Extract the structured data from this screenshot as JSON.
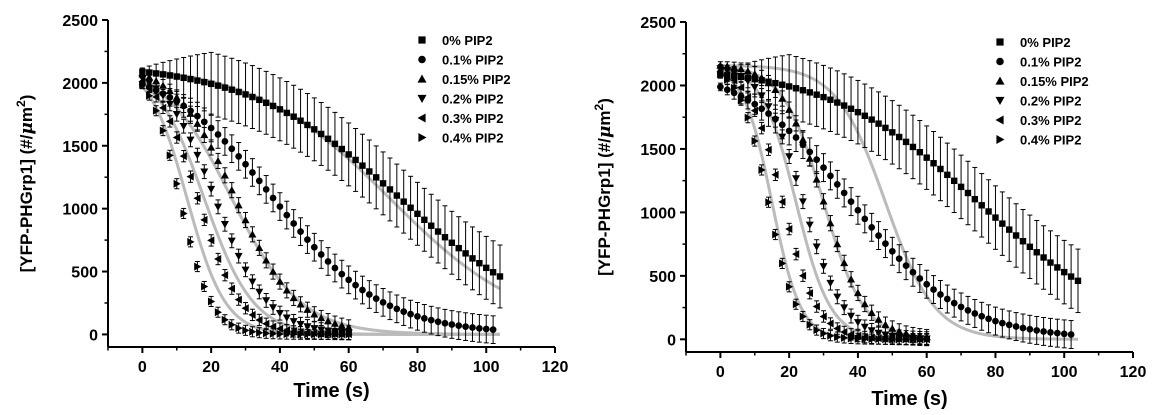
{
  "colors": {
    "marker": "#000000",
    "fit": "#bbbbbb",
    "axis": "#000000"
  },
  "chart_data": [
    {
      "type": "scatter",
      "xlabel": "Time (s)",
      "ylabel_main": "[YFP-PHGrp1] (#/",
      "ylabel_mu": "μ",
      "ylabel_m": "m",
      "ylabel_exp": "2",
      "ylabel_close": ")",
      "xlim": [
        -10,
        120
      ],
      "ylim": [
        -100,
        2500
      ],
      "xticks": [
        0,
        20,
        40,
        60,
        80,
        100,
        120
      ],
      "yticks": [
        0,
        500,
        1000,
        1500,
        2000,
        2500
      ],
      "legend_position": "top-right",
      "legend": [
        "0% PIP2",
        "0.1% PIP2",
        "0.15% PIP2",
        "0.2% PIP2",
        "0.3% PIP2",
        "0.4% PIP2"
      ],
      "series": [
        {
          "name": "0% PIP2",
          "marker": "square",
          "y0": 2160,
          "t_half": 75,
          "k": 0.045,
          "t_end": 104,
          "err_growth": 11,
          "err_max": 250
        },
        {
          "name": "0.1% PIP2",
          "marker": "circle",
          "y0": 2170,
          "t_half": 38,
          "k": 0.063,
          "t_end": 102,
          "err_growth": 5,
          "err_max": 110
        },
        {
          "name": "0.15% PIP2",
          "marker": "triangle-up",
          "y0": 2175,
          "t_half": 27,
          "k": 0.11,
          "t_end": 60,
          "err_growth": 3,
          "err_max": 60
        },
        {
          "name": "0.2% PIP2",
          "marker": "triangle-down",
          "y0": 2170,
          "t_half": 21,
          "k": 0.13,
          "t_end": 60,
          "err_growth": 3,
          "err_max": 55
        },
        {
          "name": "0.3% PIP2",
          "marker": "triangle-left",
          "y0": 2165,
          "t_half": 16,
          "k": 0.16,
          "t_end": 60,
          "err_growth": 2.5,
          "err_max": 45
        },
        {
          "name": "0.4% PIP2",
          "marker": "triangle-right",
          "y0": 2160,
          "t_half": 11,
          "k": 0.22,
          "t_end": 60,
          "err_growth": 2.5,
          "err_max": 40
        }
      ],
      "fits": [
        {
          "y0": 2160,
          "t_half": 72,
          "k": 0.05,
          "t_end": 104
        },
        {
          "y0": 2160,
          "t_half": 26,
          "k": 0.1,
          "t_end": 104
        },
        {
          "y0": 2160,
          "t_half": 18,
          "k": 0.14,
          "t_end": 104
        },
        {
          "y0": 2160,
          "t_half": 13,
          "k": 0.18,
          "t_end": 104
        }
      ]
    },
    {
      "type": "scatter",
      "xlabel": "Time (s)",
      "ylabel_main": "[YFP-PHGrp1] (#/",
      "ylabel_mu": "μ",
      "ylabel_m": "m",
      "ylabel_exp": "2",
      "ylabel_close": ")",
      "xlim": [
        -10,
        120
      ],
      "ylim": [
        -100,
        2500
      ],
      "xticks": [
        0,
        20,
        40,
        60,
        80,
        100,
        120
      ],
      "yticks": [
        0,
        500,
        1000,
        1500,
        2000,
        2500
      ],
      "legend_position": "top-right",
      "legend": [
        "0% PIP2",
        "0.1% PIP2",
        "0.15% PIP2",
        "0.2% PIP2",
        "0.3% PIP2",
        "0.4% PIP2"
      ],
      "series": [
        {
          "name": "0% PIP2",
          "marker": "square",
          "y0": 2160,
          "t_half": 75,
          "k": 0.045,
          "t_end": 104,
          "err_growth": 11,
          "err_max": 250
        },
        {
          "name": "0.1% PIP2",
          "marker": "circle",
          "y0": 2170,
          "t_half": 38,
          "k": 0.063,
          "t_end": 102,
          "err_growth": 5,
          "err_max": 110
        },
        {
          "name": "0.15% PIP2",
          "marker": "triangle-up",
          "y0": 2175,
          "t_half": 30,
          "k": 0.16,
          "t_end": 60,
          "err_growth": 3,
          "err_max": 60
        },
        {
          "name": "0.2% PIP2",
          "marker": "triangle-down",
          "y0": 2170,
          "t_half": 24,
          "k": 0.17,
          "t_end": 60,
          "err_growth": 3,
          "err_max": 55
        },
        {
          "name": "0.3% PIP2",
          "marker": "triangle-left",
          "y0": 2165,
          "t_half": 18,
          "k": 0.2,
          "t_end": 60,
          "err_growth": 2.5,
          "err_max": 45
        },
        {
          "name": "0.4% PIP2",
          "marker": "triangle-right",
          "y0": 2160,
          "t_half": 14,
          "k": 0.24,
          "t_end": 60,
          "err_growth": 2.5,
          "err_max": 40
        }
      ],
      "fits": [
        {
          "y0": 2160,
          "t_half": 48,
          "k": 0.14,
          "t_end": 104
        },
        {
          "y0": 2160,
          "t_half": 30,
          "k": 0.17,
          "t_end": 60
        },
        {
          "y0": 2160,
          "t_half": 22,
          "k": 0.2,
          "t_end": 60
        },
        {
          "y0": 2160,
          "t_half": 15,
          "k": 0.24,
          "t_end": 60
        }
      ]
    }
  ]
}
